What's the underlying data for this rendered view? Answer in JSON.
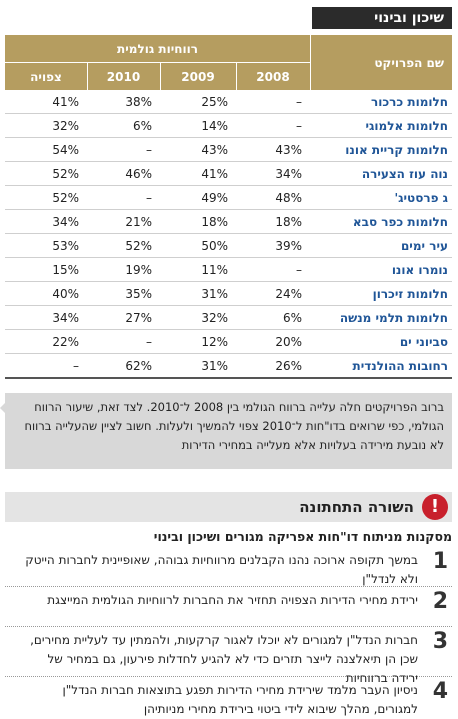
{
  "header": {
    "title": "שיכון ובינוי"
  },
  "table": {
    "name_header": "שם הפרויקט",
    "group_header": "רווחיות גולמית",
    "columns": [
      "2008",
      "2009",
      "2010",
      "צפויה"
    ],
    "rows": [
      [
        "חלומות כרכור",
        "–",
        "25%",
        "38%",
        "41%"
      ],
      [
        "חלומות אלמוגי",
        "–",
        "14%",
        "6%",
        "32%"
      ],
      [
        "חלומות קריית אונו",
        "43%",
        "43%",
        "–",
        "54%"
      ],
      [
        "נוה עוז הצעירה",
        "34%",
        "41%",
        "46%",
        "52%"
      ],
      [
        "ג פרסטיג'",
        "48%",
        "49%",
        "–",
        "52%"
      ],
      [
        "חלומות כפר סבא",
        "18%",
        "18%",
        "21%",
        "34%"
      ],
      [
        "עיר ימים",
        "39%",
        "50%",
        "52%",
        "53%"
      ],
      [
        "נומרו אונו",
        "–",
        "11%",
        "19%",
        "15%"
      ],
      [
        "חלומות זיכרון",
        "24%",
        "31%",
        "35%",
        "40%"
      ],
      [
        "חלומות תלמי מנשה",
        "6%",
        "32%",
        "27%",
        "34%"
      ],
      [
        "סביוני ים",
        "20%",
        "12%",
        "–",
        "22%"
      ],
      [
        "רחובות ההולנדית",
        "26%",
        "31%",
        "62%",
        "–"
      ]
    ]
  },
  "note": "ברוב הפרויקטים חלה עלייה ברווח הגולמי בין 2008 ל־2010. לצד זאת, שיעור הרווח הגולמי, כפי שרואים בדו\"חות ל־2010 צפוי להמשיך ולעלות. חשוב לציין שהעלייה ברווח לא נובעת מירידה בעלויות אלא מעלייה במחירי הדירות",
  "bottom_line": {
    "icon": "!",
    "title": "השורה התחתונה",
    "subtitle": "מסקנות מניתוח דו\"חות אפריקה מגורים ושיכון ובינוי",
    "items": [
      {
        "number": "1",
        "text": "במשך תקופה ארוכה נהנו הקבלנים מרווחיות גבוהה, שאופיינית לחברות הייטק ולא לנדל\"ן"
      },
      {
        "number": "2",
        "text": "ירידת מחירי הדירות הצפויה תחזיר את החברות לרווחיות הגולמית המייצגת"
      },
      {
        "number": "3",
        "text": "חברות הנדל\"ן למגורים לא יוכלו לאגור קרקעות, ולהמתין עד לעליית מחירים, שכן הן תיאלצנה לייצר תזרים כדי לא להגיע לחדלות פירעון, גם במחיר של ירידה ברווחיות"
      },
      {
        "number": "4",
        "text": "ניסיון העבר מלמד שירידת מחירי הדירות תפגע בתוצאות חברות הנדל\"ן למגורים, מהלך שיבוא לידי ביטוי בירידת מחירי מניותיהן"
      }
    ]
  }
}
